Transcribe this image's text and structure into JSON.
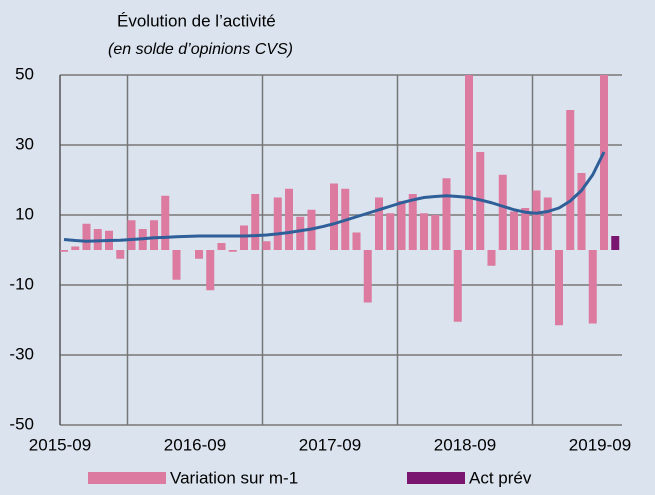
{
  "chart_data": {
    "type": "bar",
    "title": "Évolution de l’activité",
    "subtitle": "(en solde d’opinions CVS)",
    "categories": [
      "2015-09",
      null,
      null,
      null,
      null,
      null,
      null,
      null,
      null,
      null,
      null,
      null,
      "2016-09",
      null,
      null,
      null,
      null,
      null,
      null,
      null,
      null,
      null,
      null,
      null,
      "2017-09",
      null,
      null,
      null,
      null,
      null,
      null,
      null,
      null,
      null,
      null,
      null,
      "2018-09",
      null,
      null,
      null,
      null,
      null,
      null,
      null,
      null,
      null,
      null,
      null,
      "2019-09",
      null
    ],
    "series": [
      {
        "name": "Variation sur m-1",
        "color": "#dc7a9f",
        "values": [
          -0.5,
          1,
          7.5,
          6,
          5.5,
          -2.5,
          8.5,
          6,
          8.5,
          15.5,
          -8.5,
          null,
          -2.5,
          -11.5,
          2,
          -0.5,
          7,
          16,
          2.5,
          15,
          17.5,
          9.5,
          11.5,
          null,
          19,
          17.5,
          5,
          -15,
          15,
          10.5,
          14,
          16,
          10.5,
          10,
          20.5,
          -20.5,
          50,
          28,
          -4.5,
          21.5,
          11,
          12,
          17,
          15,
          -21.5,
          40,
          22,
          -21,
          50,
          null
        ]
      },
      {
        "name": "Act  prév",
        "color": "#7a1670",
        "values": [
          null,
          null,
          null,
          null,
          null,
          null,
          null,
          null,
          null,
          null,
          null,
          null,
          null,
          null,
          null,
          null,
          null,
          null,
          null,
          null,
          null,
          null,
          null,
          null,
          null,
          null,
          null,
          null,
          null,
          null,
          null,
          null,
          null,
          null,
          null,
          null,
          null,
          null,
          null,
          null,
          null,
          null,
          null,
          null,
          null,
          null,
          null,
          null,
          null,
          4
        ]
      }
    ],
    "trend_line": {
      "color": "#2f5f98",
      "values": [
        3,
        2.7,
        2.5,
        2.6,
        2.7,
        2.8,
        3,
        3.2,
        3.5,
        3.6,
        3.8,
        3.9,
        4,
        4,
        4,
        4,
        4,
        4.1,
        4.3,
        4.6,
        5,
        5.5,
        6,
        6.7,
        7.5,
        8.5,
        9.5,
        10.5,
        11.5,
        12.5,
        13.5,
        14.3,
        15,
        15.3,
        15.5,
        15.3,
        15,
        14.3,
        13.5,
        12.5,
        11.5,
        10.8,
        10.5,
        11,
        12,
        14,
        17,
        21.5,
        28,
        null
      ]
    },
    "ylim": [
      -50,
      50
    ],
    "yticks": [
      -50,
      -30,
      -10,
      10,
      30,
      50
    ],
    "grid": true
  }
}
